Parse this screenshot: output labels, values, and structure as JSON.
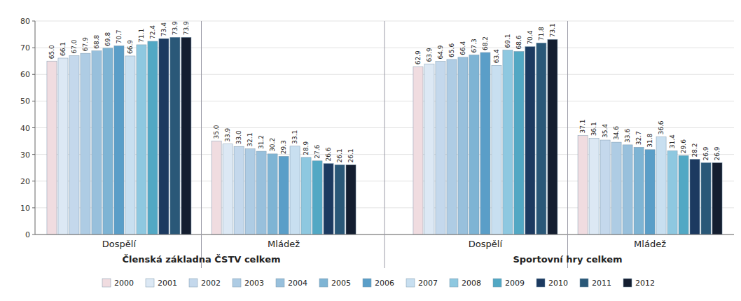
{
  "chart_data": {
    "type": "bar",
    "categories": [
      "Dospělí",
      "Mládež",
      "Dospělí",
      "Mládež"
    ],
    "annotations": [
      "Členská základna ČSTV celkem",
      "Sportovní hry celkem"
    ],
    "series": [
      {
        "name": "2000",
        "color": "#f0dce0",
        "values": [
          65.0,
          35.0,
          62.9,
          37.1
        ],
        "value_labels": [
          "65.0",
          "35.0",
          "62.9",
          "37.1"
        ]
      },
      {
        "name": "2001",
        "color": "#dce8f4",
        "values": [
          66.1,
          33.9,
          63.9,
          36.1
        ],
        "value_labels": [
          "66.1",
          "33.9",
          "63.9",
          "36.1"
        ]
      },
      {
        "name": "2002",
        "color": "#c4d8ec",
        "values": [
          67.0,
          33.0,
          64.9,
          35.4
        ],
        "value_labels": [
          "67.0",
          "33.0",
          "64.9",
          "35.4"
        ]
      },
      {
        "name": "2003",
        "color": "#aecce4",
        "values": [
          67.9,
          32.1,
          65.6,
          34.6
        ],
        "value_labels": [
          "67.9",
          "32.1",
          "65.6",
          "34.6"
        ]
      },
      {
        "name": "2004",
        "color": "#98c0dc",
        "values": [
          68.8,
          31.2,
          66.4,
          33.6
        ],
        "value_labels": [
          "68.8",
          "31.2",
          "66.4",
          "33.6"
        ]
      },
      {
        "name": "2005",
        "color": "#7eb4d4",
        "values": [
          69.8,
          30.2,
          67.3,
          32.7
        ],
        "value_labels": [
          "69.8",
          "30.2",
          "67.3",
          "32.7"
        ]
      },
      {
        "name": "2006",
        "color": "#5a9ec8",
        "values": [
          70.7,
          29.3,
          68.2,
          31.8
        ],
        "value_labels": [
          "70.7",
          "29.3",
          "68.2",
          "31.8"
        ]
      },
      {
        "name": "2007",
        "color": "#c8dff0",
        "values": [
          66.9,
          33.1,
          63.4,
          36.6
        ],
        "value_labels": [
          "66.9",
          "33.1",
          "63.4",
          "36.6"
        ]
      },
      {
        "name": "2008",
        "color": "#8ec8e0",
        "values": [
          71.1,
          28.9,
          69.1,
          31.4
        ],
        "value_labels": [
          "71.1",
          "28.9",
          "69.1",
          "31.4"
        ]
      },
      {
        "name": "2009",
        "color": "#52a8c4",
        "values": [
          72.4,
          27.6,
          68.6,
          29.6
        ],
        "value_labels": [
          "72.4",
          "27.6",
          "68.6",
          "29.6"
        ]
      },
      {
        "name": "2010",
        "color": "#1c3a60",
        "values": [
          73.4,
          26.6,
          70.4,
          28.2
        ],
        "value_labels": [
          "73.4",
          "26.6",
          "70.4",
          "28.2"
        ]
      },
      {
        "name": "2011",
        "color": "#2a5878",
        "values": [
          73.9,
          26.1,
          71.8,
          26.9
        ],
        "value_labels": [
          "73.9",
          "26.1",
          "71.8",
          "26.9"
        ]
      },
      {
        "name": "2012",
        "color": "#141e30",
        "values": [
          73.9,
          26.1,
          73.1,
          26.9
        ],
        "value_labels": [
          "73.9",
          "26.1",
          "73.1",
          "26.9"
        ]
      }
    ],
    "ylim": [
      0,
      80
    ],
    "yticks": [
      0,
      10,
      20,
      30,
      40,
      50,
      60,
      70,
      80
    ],
    "grid": true,
    "data_labels": true,
    "legend": "bottom"
  }
}
